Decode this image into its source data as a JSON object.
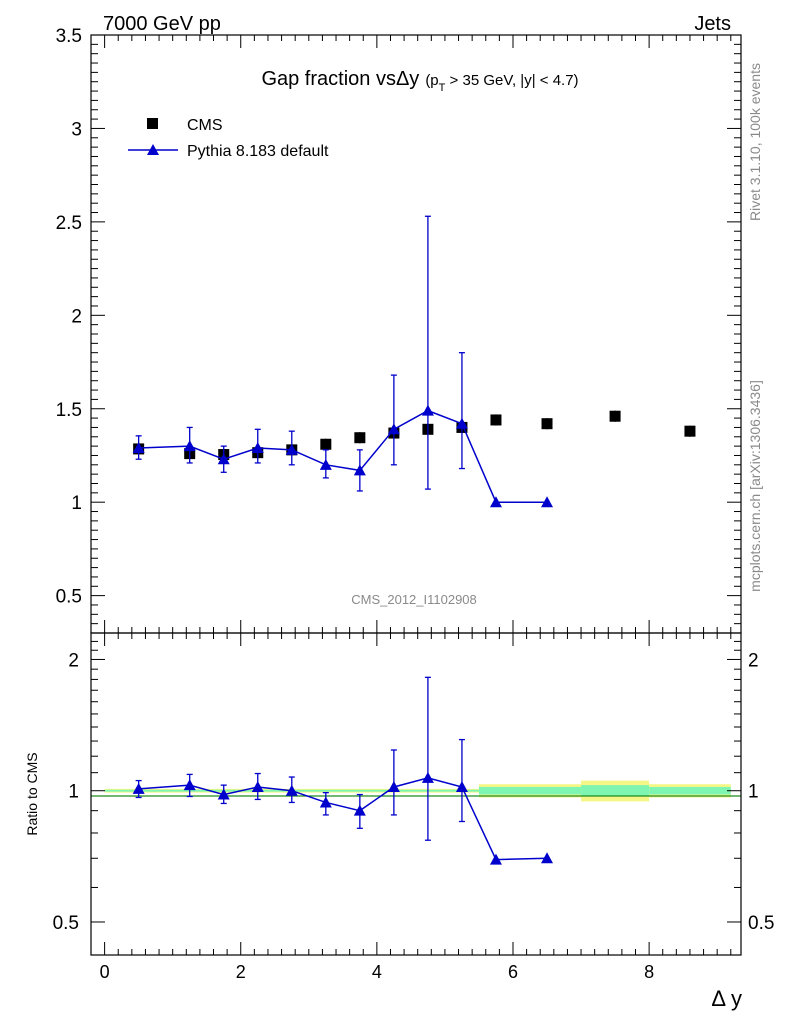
{
  "header": {
    "left": "7000 GeV pp",
    "right": "Jets"
  },
  "title": {
    "main": "Gap fraction vsΔy",
    "cut_open": "(p",
    "cut_sub": "T",
    "cut_rest": " > 35 GeV, |y| < 4.7)"
  },
  "side_labels": {
    "rivet": "Rivet 3.1.10,  100k events",
    "mcplots": "mcplots.cern.ch [arXiv:1306.3436]"
  },
  "analysis_id": "CMS_2012_I1102908",
  "colors": {
    "data": "#000000",
    "mc": "#0000cc",
    "band_inner": "#7ef5b0",
    "band_outer": "#f4f786",
    "ref_line": "#1d8a1d",
    "side_text": "#8a8a8a"
  },
  "legend": [
    {
      "label": "CMS",
      "marker": "square"
    },
    {
      "label": "Pythia 8.183 default",
      "marker": "triangle-line"
    }
  ],
  "chart_data": [
    {
      "type": "scatter",
      "panel": "main",
      "title": "Gap fraction vsΔy (pT > 35 GeV, |y| < 4.7)",
      "xlabel": "Δ y",
      "ylabel": "",
      "xlim": [
        -0.2,
        9.35
      ],
      "ylim": [
        0.3,
        3.5
      ],
      "yticks": [
        0.5,
        1,
        1.5,
        2,
        2.5,
        3,
        3.5
      ],
      "ytick_labels": [
        "0.5",
        "1",
        "1.5",
        "2",
        "2.5",
        "3",
        "3.5"
      ],
      "series": [
        {
          "name": "CMS",
          "marker": "square",
          "points": [
            {
              "x": 0.5,
              "y": 1.285,
              "x_err": 0.5,
              "y_err": 0.03
            },
            {
              "x": 1.25,
              "y": 1.26,
              "x_err": 0.25,
              "y_err": 0.03
            },
            {
              "x": 1.75,
              "y": 1.255,
              "x_err": 0.25,
              "y_err": 0.03
            },
            {
              "x": 2.25,
              "y": 1.265,
              "x_err": 0.25,
              "y_err": 0.03
            },
            {
              "x": 2.75,
              "y": 1.28,
              "x_err": 0.25,
              "y_err": 0.03
            },
            {
              "x": 3.25,
              "y": 1.31,
              "x_err": 0.25,
              "y_err": 0.03
            },
            {
              "x": 3.75,
              "y": 1.345,
              "x_err": 0.25,
              "y_err": 0.03
            },
            {
              "x": 4.25,
              "y": 1.37,
              "x_err": 0.25,
              "y_err": 0.03
            },
            {
              "x": 4.75,
              "y": 1.39,
              "x_err": 0.25,
              "y_err": 0.03
            },
            {
              "x": 5.25,
              "y": 1.4,
              "x_err": 0.25,
              "y_err": 0.03
            },
            {
              "x": 5.75,
              "y": 1.44,
              "x_err": 0.25,
              "y_err": 0.03
            },
            {
              "x": 6.5,
              "y": 1.42,
              "x_err": 0.5,
              "y_err": 0.03
            },
            {
              "x": 7.5,
              "y": 1.46,
              "x_err": 0.5,
              "y_err": 0.03
            },
            {
              "x": 8.6,
              "y": 1.38,
              "x_err": 0.6,
              "y_err": 0.03
            }
          ]
        },
        {
          "name": "Pythia 8.183 default",
          "marker": "triangle",
          "points": [
            {
              "x": 0.5,
              "y": 1.29,
              "y_lo": 1.23,
              "y_hi": 1.355
            },
            {
              "x": 1.25,
              "y": 1.3,
              "y_lo": 1.21,
              "y_hi": 1.4
            },
            {
              "x": 1.75,
              "y": 1.23,
              "y_lo": 1.16,
              "y_hi": 1.3
            },
            {
              "x": 2.25,
              "y": 1.29,
              "y_lo": 1.21,
              "y_hi": 1.39
            },
            {
              "x": 2.75,
              "y": 1.28,
              "y_lo": 1.2,
              "y_hi": 1.38
            },
            {
              "x": 3.25,
              "y": 1.2,
              "y_lo": 1.13,
              "y_hi": 1.28
            },
            {
              "x": 3.75,
              "y": 1.17,
              "y_lo": 1.06,
              "y_hi": 1.28
            },
            {
              "x": 4.25,
              "y": 1.39,
              "y_lo": 1.2,
              "y_hi": 1.68
            },
            {
              "x": 4.75,
              "y": 1.49,
              "y_lo": 1.07,
              "y_hi": 2.53
            },
            {
              "x": 5.25,
              "y": 1.42,
              "y_lo": 1.18,
              "y_hi": 1.8
            },
            {
              "x": 5.75,
              "y": 1.0,
              "y_lo": 1.0,
              "y_hi": 1.0
            },
            {
              "x": 6.5,
              "y": 1.0,
              "y_lo": 1.0,
              "y_hi": 1.0
            }
          ]
        }
      ]
    },
    {
      "type": "scatter",
      "panel": "ratio",
      "xlabel": "Δ y",
      "ylabel": "Ratio to CMS",
      "xlim": [
        -0.2,
        9.35
      ],
      "ylim": [
        0.42,
        2.3
      ],
      "yscale": "log",
      "yticks": [
        0.5,
        1,
        2
      ],
      "ytick_labels": [
        "0.5",
        "1",
        "2"
      ],
      "xticks": [
        0,
        2,
        4,
        6,
        8
      ],
      "xtick_labels": [
        "0",
        "2",
        "4",
        "6",
        "8"
      ],
      "reference": 1.0,
      "uncertainty_band": [
        {
          "x_lo": 0.0,
          "x_hi": 5.5,
          "inner": 0.005,
          "outer": 0.01
        },
        {
          "x_lo": 5.5,
          "x_hi": 6.0,
          "inner": 0.02,
          "outer": 0.035
        },
        {
          "x_lo": 6.0,
          "x_hi": 7.0,
          "inner": 0.02,
          "outer": 0.035
        },
        {
          "x_lo": 7.0,
          "x_hi": 8.0,
          "inner": 0.03,
          "outer": 0.055
        },
        {
          "x_lo": 8.0,
          "x_hi": 9.2,
          "inner": 0.02,
          "outer": 0.035
        }
      ],
      "series": [
        {
          "name": "Pythia 8.183 default",
          "marker": "triangle",
          "points": [
            {
              "x": 0.5,
              "y": 1.01,
              "y_lo": 0.965,
              "y_hi": 1.055
            },
            {
              "x": 1.25,
              "y": 1.03,
              "y_lo": 0.97,
              "y_hi": 1.09
            },
            {
              "x": 1.75,
              "y": 0.98,
              "y_lo": 0.935,
              "y_hi": 1.03
            },
            {
              "x": 2.25,
              "y": 1.02,
              "y_lo": 0.955,
              "y_hi": 1.095
            },
            {
              "x": 2.75,
              "y": 1.0,
              "y_lo": 0.94,
              "y_hi": 1.075
            },
            {
              "x": 3.25,
              "y": 0.94,
              "y_lo": 0.88,
              "y_hi": 0.99
            },
            {
              "x": 3.75,
              "y": 0.9,
              "y_lo": 0.82,
              "y_hi": 0.98
            },
            {
              "x": 4.25,
              "y": 1.02,
              "y_lo": 0.88,
              "y_hi": 1.24
            },
            {
              "x": 4.75,
              "y": 1.07,
              "y_lo": 0.77,
              "y_hi": 1.82
            },
            {
              "x": 5.25,
              "y": 1.02,
              "y_lo": 0.85,
              "y_hi": 1.31
            },
            {
              "x": 5.75,
              "y": 0.695,
              "y_lo": 0.695,
              "y_hi": 0.695
            },
            {
              "x": 6.5,
              "y": 0.7,
              "y_lo": 0.7,
              "y_hi": 0.7
            }
          ]
        }
      ]
    }
  ]
}
